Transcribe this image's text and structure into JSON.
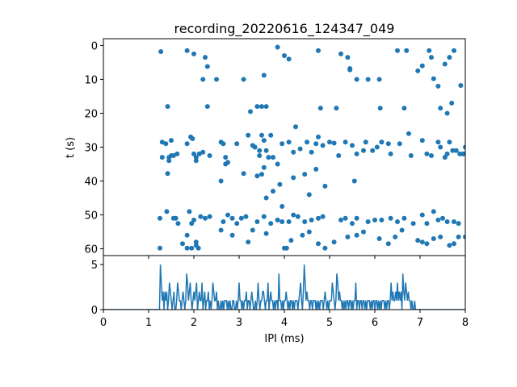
{
  "chart_data": [
    {
      "type": "scatter",
      "title": "recording_20220616_124347_049",
      "xlabel": "",
      "ylabel": "t (s)",
      "xlim": [
        0,
        8
      ],
      "ylim": [
        62,
        -2
      ],
      "y_inverted": true,
      "yticks": [
        0,
        10,
        20,
        30,
        40,
        50,
        60
      ],
      "x_ticklabels_shown": false,
      "marker_color": "#1f77b4",
      "points": [
        [
          1.27,
          1.8
        ],
        [
          1.85,
          1.5
        ],
        [
          2.0,
          2.5
        ],
        [
          2.25,
          3.5
        ],
        [
          2.3,
          6.2
        ],
        [
          2.5,
          10.0
        ],
        [
          2.2,
          10.0
        ],
        [
          3.1,
          10.0
        ],
        [
          3.55,
          8.8
        ],
        [
          3.85,
          0.5
        ],
        [
          4.1,
          4.0
        ],
        [
          4.0,
          3.0
        ],
        [
          4.75,
          1.5
        ],
        [
          5.25,
          2.5
        ],
        [
          5.4,
          3.5
        ],
        [
          5.45,
          6.8
        ],
        [
          5.45,
          7.2
        ],
        [
          5.6,
          10.0
        ],
        [
          5.85,
          10.0
        ],
        [
          6.1,
          10.0
        ],
        [
          6.5,
          1.5
        ],
        [
          6.7,
          1.5
        ],
        [
          6.95,
          7.5
        ],
        [
          7.05,
          6.0
        ],
        [
          7.2,
          1.5
        ],
        [
          7.25,
          3.5
        ],
        [
          7.3,
          9.8
        ],
        [
          7.4,
          12.0
        ],
        [
          7.55,
          5.5
        ],
        [
          7.65,
          3.5
        ],
        [
          7.75,
          1.5
        ],
        [
          7.9,
          11.8
        ],
        [
          1.42,
          18.0
        ],
        [
          2.3,
          18.0
        ],
        [
          3.25,
          19.5
        ],
        [
          3.4,
          18.0
        ],
        [
          3.5,
          18.0
        ],
        [
          3.6,
          18.0
        ],
        [
          4.25,
          24.0
        ],
        [
          4.8,
          18.5
        ],
        [
          5.15,
          18.5
        ],
        [
          6.12,
          18.5
        ],
        [
          6.65,
          18.5
        ],
        [
          7.45,
          18.5
        ],
        [
          7.6,
          20.0
        ],
        [
          7.7,
          17.0
        ],
        [
          1.3,
          28.5
        ],
        [
          1.38,
          29.0
        ],
        [
          1.5,
          28.0
        ],
        [
          1.63,
          32.0
        ],
        [
          1.3,
          33.0
        ],
        [
          1.45,
          33.0
        ],
        [
          1.5,
          32.5
        ],
        [
          1.45,
          34.0
        ],
        [
          1.55,
          32.5
        ],
        [
          1.85,
          29.0
        ],
        [
          1.93,
          27.0
        ],
        [
          1.97,
          27.5
        ],
        [
          2.0,
          32.0
        ],
        [
          2.05,
          33.0
        ],
        [
          2.05,
          34.0
        ],
        [
          2.12,
          32.0
        ],
        [
          2.2,
          31.5
        ],
        [
          2.35,
          32.5
        ],
        [
          2.6,
          28.5
        ],
        [
          2.65,
          29.0
        ],
        [
          2.7,
          33.0
        ],
        [
          2.75,
          34.5
        ],
        [
          2.95,
          29.0
        ],
        [
          3.2,
          26.5
        ],
        [
          3.3,
          29.5
        ],
        [
          3.35,
          30.0
        ],
        [
          3.45,
          31.0
        ],
        [
          3.45,
          32.5
        ],
        [
          3.5,
          26.5
        ],
        [
          3.55,
          28.0
        ],
        [
          3.6,
          31.0
        ],
        [
          3.65,
          33.0
        ],
        [
          3.7,
          26.5
        ],
        [
          3.75,
          33.0
        ],
        [
          3.85,
          35.0
        ],
        [
          3.95,
          29.0
        ],
        [
          4.1,
          28.5
        ],
        [
          4.2,
          31.5
        ],
        [
          4.35,
          30.5
        ],
        [
          4.5,
          28.5
        ],
        [
          4.6,
          31.5
        ],
        [
          4.7,
          29.0
        ],
        [
          4.75,
          27.0
        ],
        [
          4.85,
          29.5
        ],
        [
          5.0,
          28.5
        ],
        [
          5.1,
          28.8
        ],
        [
          5.2,
          32.5
        ],
        [
          5.35,
          28.5
        ],
        [
          5.5,
          29.5
        ],
        [
          5.6,
          32.0
        ],
        [
          5.75,
          31.0
        ],
        [
          5.8,
          28.5
        ],
        [
          5.95,
          31.0
        ],
        [
          6.05,
          30.0
        ],
        [
          6.15,
          28.5
        ],
        [
          6.3,
          29.0
        ],
        [
          6.35,
          32.0
        ],
        [
          6.55,
          29.0
        ],
        [
          6.75,
          26.0
        ],
        [
          6.8,
          32.5
        ],
        [
          7.05,
          28.0
        ],
        [
          7.15,
          32.0
        ],
        [
          7.25,
          32.5
        ],
        [
          7.4,
          28.5
        ],
        [
          7.45,
          30.0
        ],
        [
          7.55,
          33.0
        ],
        [
          7.6,
          32.0
        ],
        [
          7.65,
          28.5
        ],
        [
          7.72,
          31.0
        ],
        [
          7.8,
          31.0
        ],
        [
          7.88,
          32.0
        ],
        [
          7.95,
          32.0
        ],
        [
          8.0,
          30.0
        ],
        [
          8.0,
          32.0
        ],
        [
          1.42,
          37.8
        ],
        [
          2.6,
          40.0
        ],
        [
          2.7,
          35.0
        ],
        [
          3.1,
          37.8
        ],
        [
          3.4,
          38.5
        ],
        [
          3.5,
          38.0
        ],
        [
          3.55,
          36.0
        ],
        [
          3.6,
          45.0
        ],
        [
          3.75,
          43.0
        ],
        [
          3.9,
          41.0
        ],
        [
          3.95,
          47.5
        ],
        [
          4.2,
          39.0
        ],
        [
          4.45,
          38.0
        ],
        [
          4.55,
          44.0
        ],
        [
          4.7,
          36.5
        ],
        [
          4.9,
          41.5
        ],
        [
          5.55,
          40.0
        ],
        [
          1.25,
          51.0
        ],
        [
          1.4,
          49.0
        ],
        [
          1.55,
          51.0
        ],
        [
          1.6,
          51.0
        ],
        [
          1.65,
          52.5
        ],
        [
          1.85,
          56.0
        ],
        [
          1.9,
          49.0
        ],
        [
          1.95,
          52.5
        ],
        [
          2.0,
          51.5
        ],
        [
          2.05,
          58.0
        ],
        [
          2.15,
          50.5
        ],
        [
          2.25,
          51.0
        ],
        [
          2.35,
          50.5
        ],
        [
          2.65,
          52.0
        ],
        [
          2.75,
          50.0
        ],
        [
          2.85,
          51.0
        ],
        [
          2.95,
          52.5
        ],
        [
          3.05,
          51.0
        ],
        [
          3.15,
          50.5
        ],
        [
          3.4,
          52.0
        ],
        [
          3.55,
          50.5
        ],
        [
          3.7,
          52.5
        ],
        [
          3.85,
          51.5
        ],
        [
          3.95,
          52.0
        ],
        [
          4.1,
          52.0
        ],
        [
          4.2,
          50.0
        ],
        [
          4.3,
          50.5
        ],
        [
          4.45,
          52.0
        ],
        [
          4.6,
          51.5
        ],
        [
          4.75,
          51.0
        ],
        [
          4.85,
          50.5
        ],
        [
          5.25,
          51.5
        ],
        [
          5.35,
          51.0
        ],
        [
          5.5,
          52.5
        ],
        [
          5.6,
          51.0
        ],
        [
          5.85,
          52.0
        ],
        [
          6.0,
          51.5
        ],
        [
          6.15,
          51.5
        ],
        [
          6.35,
          51.0
        ],
        [
          6.5,
          52.0
        ],
        [
          6.65,
          51.0
        ],
        [
          6.85,
          52.5
        ],
        [
          7.05,
          50.0
        ],
        [
          7.15,
          52.5
        ],
        [
          7.3,
          49.0
        ],
        [
          7.4,
          51.5
        ],
        [
          7.5,
          51.0
        ],
        [
          7.6,
          52.0
        ],
        [
          7.75,
          52.0
        ],
        [
          7.85,
          52.5
        ],
        [
          1.25,
          59.8
        ],
        [
          1.75,
          58.5
        ],
        [
          1.85,
          59.8
        ],
        [
          1.95,
          59.8
        ],
        [
          2.1,
          59.8
        ],
        [
          2.05,
          59.0
        ],
        [
          2.6,
          54.5
        ],
        [
          2.85,
          56.0
        ],
        [
          3.2,
          58.0
        ],
        [
          3.3,
          54.5
        ],
        [
          3.6,
          55.5
        ],
        [
          4.0,
          59.8
        ],
        [
          4.05,
          59.8
        ],
        [
          4.15,
          57.5
        ],
        [
          4.4,
          56.0
        ],
        [
          4.55,
          55.0
        ],
        [
          4.75,
          58.5
        ],
        [
          4.9,
          59.8
        ],
        [
          5.1,
          58.0
        ],
        [
          5.4,
          56.5
        ],
        [
          5.6,
          56.0
        ],
        [
          5.75,
          55.0
        ],
        [
          6.1,
          57.0
        ],
        [
          6.3,
          58.5
        ],
        [
          6.45,
          56.5
        ],
        [
          6.6,
          54.5
        ],
        [
          6.95,
          57.5
        ],
        [
          7.05,
          58.0
        ],
        [
          7.15,
          58.5
        ],
        [
          7.3,
          57.0
        ],
        [
          7.45,
          56.5
        ],
        [
          7.65,
          59.0
        ],
        [
          7.75,
          58.5
        ],
        [
          7.85,
          56.5
        ],
        [
          8.0,
          56.5
        ]
      ]
    },
    {
      "type": "line",
      "title": "",
      "xlabel": "IPI (ms)",
      "ylabel": "",
      "xlim": [
        0,
        8
      ],
      "ylim": [
        0,
        6
      ],
      "xticks": [
        0,
        1,
        2,
        3,
        4,
        5,
        6,
        7,
        8
      ],
      "yticks": [
        0,
        5
      ],
      "line_color": "#1f77b4",
      "series": [
        {
          "x_start": 0,
          "x_step": 0.02,
          "values": [
            0,
            0,
            0,
            0,
            0,
            0,
            0,
            0,
            0,
            0,
            0,
            0,
            0,
            0,
            0,
            0,
            0,
            0,
            0,
            0,
            0,
            0,
            0,
            0,
            0,
            0,
            0,
            0,
            0,
            0,
            0,
            0,
            0,
            0,
            0,
            0,
            0,
            0,
            0,
            0,
            0,
            0,
            0,
            0,
            0,
            0,
            0,
            0,
            0,
            0,
            0,
            0,
            0,
            0,
            0,
            0,
            0,
            0,
            0,
            0,
            0,
            0,
            0,
            5,
            3,
            1,
            2,
            0,
            2,
            1,
            2,
            0,
            1,
            3,
            2,
            1,
            0,
            1,
            2,
            0,
            0,
            1,
            3,
            2,
            1,
            1,
            0,
            1,
            2,
            1,
            0,
            1,
            4,
            3,
            1,
            2,
            3,
            1,
            0,
            1,
            2,
            1,
            2,
            3,
            0,
            1,
            2,
            1,
            1,
            3,
            0,
            1,
            2,
            0,
            1,
            1,
            2,
            0,
            1,
            0,
            1,
            3,
            2,
            1,
            1,
            2,
            0,
            1,
            0,
            0,
            1,
            0,
            1,
            0,
            1,
            1,
            1,
            0,
            1,
            0,
            1,
            0,
            0,
            1,
            1,
            0,
            0,
            1,
            0,
            1,
            3,
            1,
            1,
            0,
            1,
            0,
            1,
            1,
            2,
            0,
            1,
            1,
            0,
            1,
            2,
            1,
            0,
            0,
            1,
            0,
            1,
            3,
            1,
            0,
            1,
            1,
            2,
            2,
            1,
            0,
            1,
            1,
            3,
            0,
            1,
            2,
            1,
            1,
            0,
            1,
            0,
            1,
            1,
            0,
            4,
            1,
            1,
            0,
            1,
            0,
            1,
            1,
            2,
            1,
            0,
            1,
            0,
            1,
            1,
            0,
            1,
            0,
            1,
            1,
            1,
            0,
            1,
            2,
            3,
            1,
            0,
            2,
            5,
            3,
            1,
            2,
            1,
            1,
            0,
            1,
            1,
            0,
            1,
            1,
            1,
            0,
            1,
            0,
            1,
            0,
            1,
            1,
            1,
            0,
            1,
            2,
            1,
            0,
            1,
            0,
            1,
            1,
            1,
            3,
            2,
            1,
            0,
            1,
            4,
            3,
            1,
            2,
            1,
            1,
            0,
            1,
            0,
            1,
            0,
            1,
            1,
            0,
            1,
            1,
            0,
            1,
            0,
            1,
            1,
            3,
            0,
            1,
            1,
            0,
            1,
            1,
            0,
            1,
            1,
            0,
            1,
            0,
            1,
            1,
            1,
            0,
            1,
            0,
            1,
            1,
            0,
            1,
            1,
            0,
            1,
            0,
            1,
            0,
            1,
            1,
            1,
            0,
            1,
            0,
            1,
            1,
            0,
            1,
            3,
            1,
            2,
            1,
            1,
            2,
            1,
            3,
            1,
            2,
            1,
            2,
            0,
            4,
            2,
            1,
            3,
            2,
            1,
            2,
            1,
            1,
            0,
            1,
            0,
            0,
            1,
            0
          ]
        }
      ]
    }
  ]
}
